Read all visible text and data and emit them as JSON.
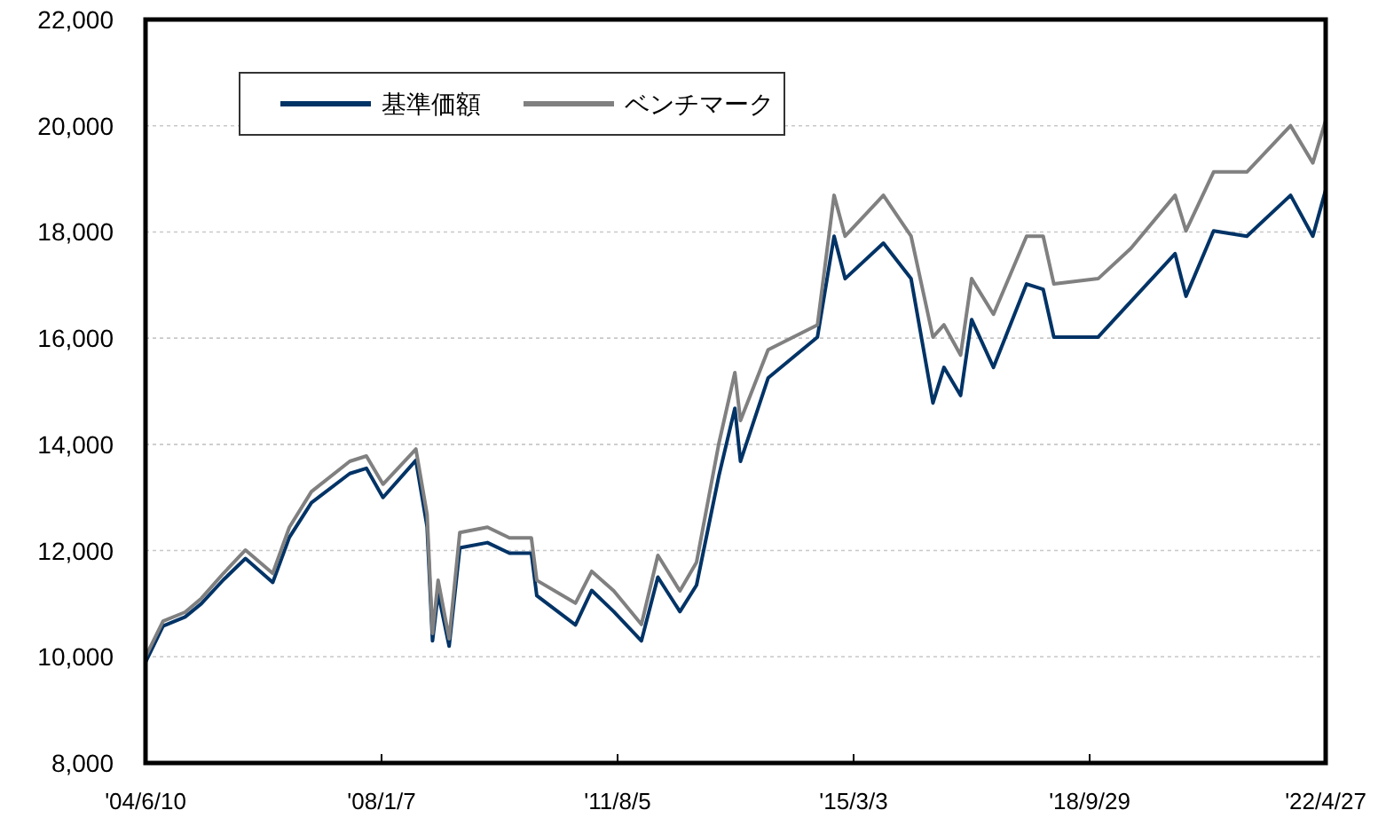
{
  "chart_data": {
    "type": "line",
    "x": [
      "2004-06-10",
      "2004-09-15",
      "2005-01-15",
      "2005-04-15",
      "2005-08-15",
      "2005-12-15",
      "2006-05-15",
      "2006-08-15",
      "2006-12-15",
      "2007-07-15",
      "2007-10-15",
      "2008-01-15",
      "2008-07-15",
      "2008-09-15",
      "2008-10-15",
      "2008-11-15",
      "2009-01-15",
      "2009-03-15",
      "2009-08-15",
      "2009-12-15",
      "2010-04-15",
      "2010-05-15",
      "2010-12-15",
      "2011-03-15",
      "2011-07-15",
      "2011-12-15",
      "2012-03-15",
      "2012-07-15",
      "2012-10-15",
      "2013-02-15",
      "2013-05-15",
      "2013-06-15",
      "2013-11-15",
      "2014-08-15",
      "2014-11-15",
      "2015-01-15",
      "2015-08-15",
      "2016-01-15",
      "2016-05-15",
      "2016-07-15",
      "2016-10-15",
      "2016-12-15",
      "2017-04-15",
      "2017-10-15",
      "2018-01-15",
      "2018-03-15",
      "2018-11-15",
      "2019-05-15",
      "2020-01-15",
      "2020-03-15",
      "2020-08-15",
      "2021-02-15",
      "2021-10-15",
      "2022-02-15",
      "2022-04-27"
    ],
    "series": [
      {
        "name": "基準価額",
        "color": "#003366",
        "values": [
          9900,
          10580,
          10750,
          11000,
          11450,
          11850,
          11400,
          12250,
          12900,
          13450,
          13550,
          13000,
          13700,
          12450,
          10300,
          11200,
          10200,
          12050,
          12150,
          11950,
          11950,
          11150,
          10600,
          11250,
          10850,
          10300,
          11500,
          10850,
          11350,
          13400,
          14680,
          13680,
          15250,
          16020,
          17920,
          17120,
          17790,
          17120,
          14780,
          15450,
          14920,
          16350,
          15450,
          17020,
          16920,
          16020,
          16020,
          16690,
          17590,
          16790,
          18020,
          17920,
          18690,
          17920,
          18790
        ]
      },
      {
        "name": "ベンチマーク",
        "color": "#808080",
        "values": [
          10000,
          10670,
          10840,
          11100,
          11570,
          12010,
          11570,
          12440,
          13110,
          13680,
          13780,
          13250,
          13910,
          12680,
          10440,
          11440,
          10340,
          12340,
          12440,
          12240,
          12240,
          11440,
          11010,
          11610,
          11240,
          10610,
          11910,
          11240,
          11780,
          14010,
          15350,
          14450,
          15780,
          16250,
          18690,
          17920,
          18690,
          17920,
          16020,
          16250,
          15680,
          17120,
          16450,
          17920,
          17920,
          17020,
          17120,
          17690,
          18690,
          18020,
          19130,
          19130,
          20000,
          19300,
          20100
        ]
      }
    ],
    "xlim": [
      "2004-06-10",
      "2022-04-27"
    ],
    "xticks": [
      {
        "value": "2004-06-10",
        "label": "'04/6/10"
      },
      {
        "value": "2008-01-07",
        "label": "'08/1/7"
      },
      {
        "value": "2011-08-05",
        "label": "'11/8/5"
      },
      {
        "value": "2015-03-03",
        "label": "'15/3/3"
      },
      {
        "value": "2018-09-29",
        "label": "'18/9/29"
      },
      {
        "value": "2022-04-27",
        "label": "'22/4/27"
      }
    ],
    "ylim": [
      8000,
      22000
    ],
    "yticks": [
      {
        "value": 8000,
        "label": "8,000"
      },
      {
        "value": 10000,
        "label": "10,000"
      },
      {
        "value": 12000,
        "label": "12,000"
      },
      {
        "value": 14000,
        "label": "14,000"
      },
      {
        "value": 16000,
        "label": "16,000"
      },
      {
        "value": 18000,
        "label": "18,000"
      },
      {
        "value": 20000,
        "label": "20,000"
      },
      {
        "value": 22000,
        "label": "22,000"
      }
    ],
    "grid": "y",
    "legend": "top left",
    "marker": "none",
    "line_style": "solid"
  }
}
